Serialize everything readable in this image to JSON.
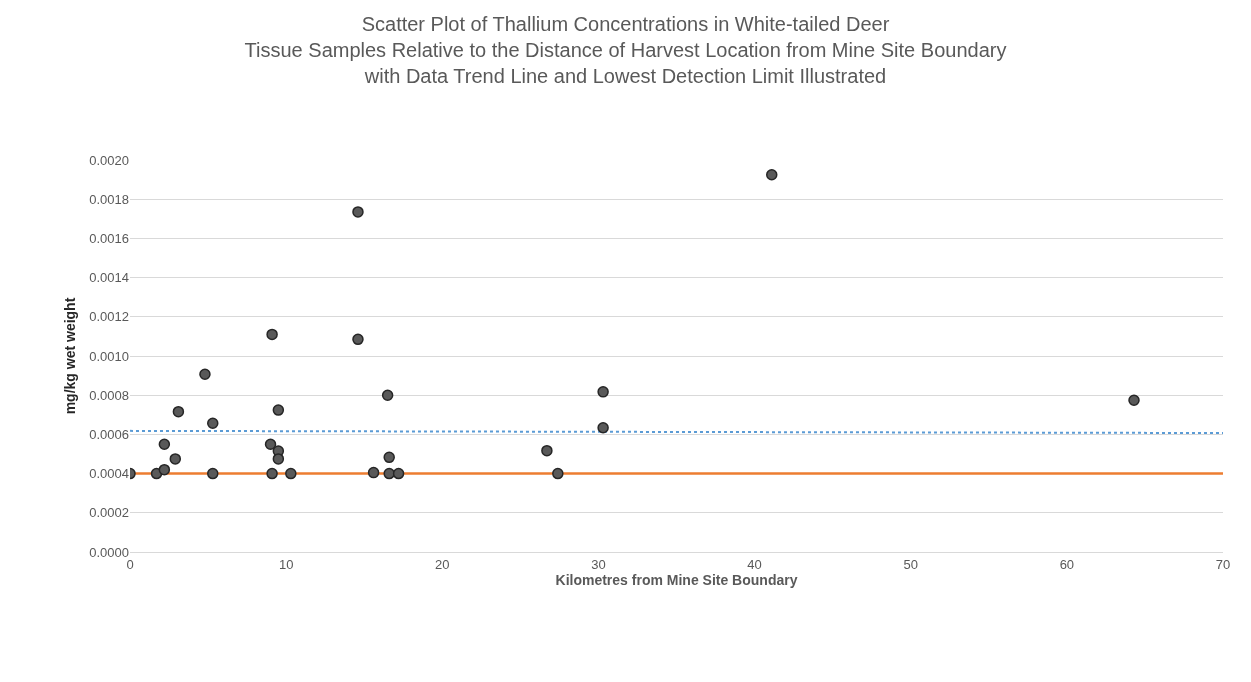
{
  "chart_data": {
    "type": "scatter",
    "title": "Scatter Plot of Thallium Concentrations in White-tailed Deer\nTissue Samples Relative to the Distance of Harvest Location from Mine Site Boundary\nwith Data Trend Line and Lowest Detection Limit Illustrated",
    "xlabel": "Kilometres from Mine Site Boundary",
    "ylabel": "mg/kg wet weight",
    "xlim": [
      0,
      70
    ],
    "xticks": [
      0,
      10,
      20,
      30,
      40,
      50,
      60,
      70
    ],
    "ylim": [
      0,
      0.002
    ],
    "yticks": [
      {
        "value": 0,
        "label": "0.0000"
      },
      {
        "value": 0.0002,
        "label": "0.0002"
      },
      {
        "value": 0.0004,
        "label": "0.0004"
      },
      {
        "value": 0.0006,
        "label": "0.0006"
      },
      {
        "value": 0.0008,
        "label": "0.0008"
      },
      {
        "value": 0.001,
        "label": "0.0010"
      },
      {
        "value": 0.0012,
        "label": "0.0012"
      },
      {
        "value": 0.0014,
        "label": "0.0014"
      },
      {
        "value": 0.0016,
        "label": "0.0016"
      },
      {
        "value": 0.0018,
        "label": "0.0018"
      },
      {
        "value": 0.002,
        "label": "0.0020"
      }
    ],
    "grid": "y",
    "series": [
      {
        "color": "#595959",
        "marker": "circle",
        "x": [
          0,
          1.7,
          2.2,
          2.2,
          2.9,
          3.1,
          4.8,
          5.3,
          5.3,
          9.1,
          9.0,
          9.1,
          9.5,
          9.5,
          9.5,
          10.3,
          14.6,
          14.6,
          16.5,
          16.6,
          15.6,
          16.6,
          17.2,
          26.7,
          27.4,
          30.3,
          30.3,
          41.1,
          64.3
        ],
        "values": [
          0.0004,
          0.0004,
          0.00042,
          0.00055,
          0.000475,
          0.000716,
          0.000907,
          0.000657,
          0.0004,
          0.00111,
          0.00055,
          0.0004,
          0.000724,
          0.000515,
          0.000475,
          0.0004,
          0.001735,
          0.001085,
          0.0008,
          0.000483,
          0.000405,
          0.0004,
          0.0004,
          0.000517,
          0.0004,
          0.000817,
          0.000634,
          0.001925,
          0.000774
        ]
      },
      {
        "type": "line",
        "color": "#5b9bd5",
        "line_style": "dotted",
        "x": [
          0,
          70
        ],
        "values": [
          0.000618,
          0.000607
        ]
      }
    ],
    "ref_lines": [
      {
        "axis": "y",
        "value": 0.0004,
        "color": "#ed7d31",
        "line_style": "solid"
      }
    ]
  }
}
